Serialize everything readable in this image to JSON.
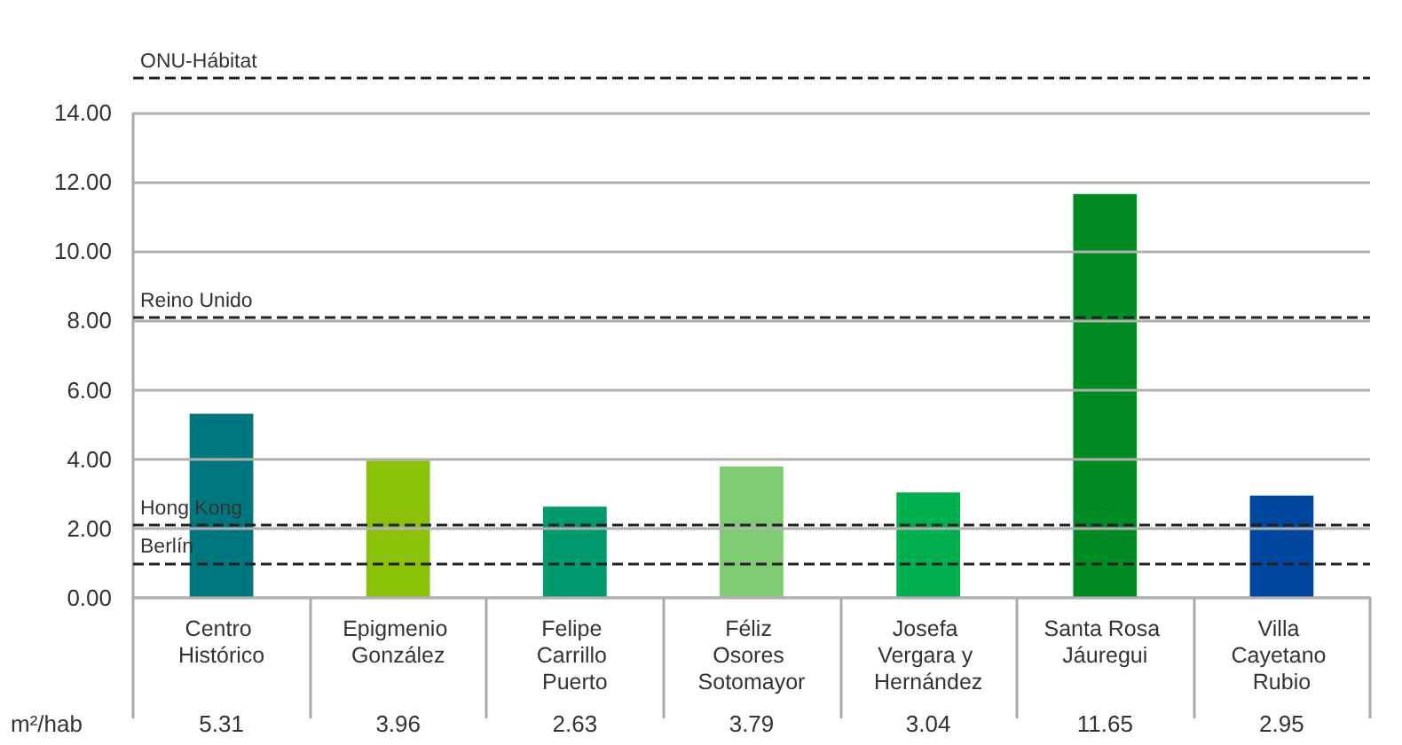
{
  "chart_data": {
    "type": "bar",
    "ylabel": "m²/hab",
    "categories": [
      "Centro Histórico",
      "Epigmenio González",
      "Felipe Carrillo Puerto",
      "Féliz Osores Sotomayor",
      "Josefa Vergara y Hernández",
      "Santa Rosa Jáuregui",
      "Villa Cayetano Rubio"
    ],
    "values": [
      5.31,
      3.96,
      2.63,
      3.79,
      3.04,
      11.65,
      2.95
    ],
    "colors": [
      "#00777f",
      "#8cc10a",
      "#009a6e",
      "#7fcb72",
      "#00b04f",
      "#008a22",
      "#0047a0"
    ],
    "ylim": [
      0,
      15
    ],
    "yticks": [
      {
        "value": 0,
        "label": "0.00"
      },
      {
        "value": 2,
        "label": "2.00"
      },
      {
        "value": 4,
        "label": "4.00"
      },
      {
        "value": 6,
        "label": "6.00"
      },
      {
        "value": 8,
        "label": "8.00"
      },
      {
        "value": 10,
        "label": "10.00"
      },
      {
        "value": 12,
        "label": "12.00"
      },
      {
        "value": 14,
        "label": "14.00"
      }
    ],
    "ref_lines": [
      {
        "axis": "y",
        "value": 15,
        "label": "ONU-Hábitat",
        "line_style": "dashed",
        "color": "#222222"
      },
      {
        "axis": "y",
        "value": 8.1,
        "label": "Reino Unido",
        "line_style": "dashed",
        "color": "#222222"
      },
      {
        "axis": "y",
        "value": 2.1,
        "label": "Hong Kong",
        "line_style": "dashed",
        "color": "#222222"
      },
      {
        "axis": "y",
        "value": 1,
        "label": "Berlín",
        "line_style": "dashed",
        "color": "#222222"
      }
    ],
    "grid": "y",
    "data_labels": true
  }
}
